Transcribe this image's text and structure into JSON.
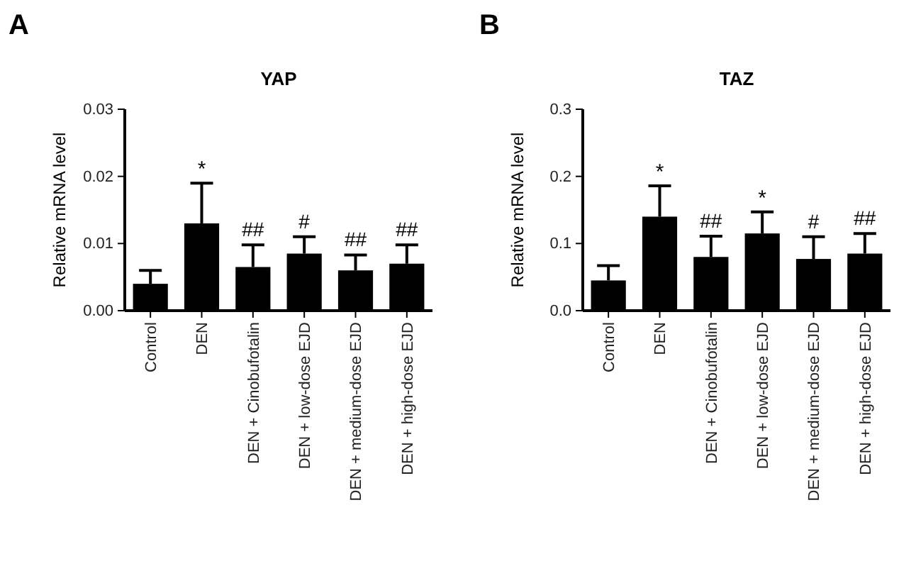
{
  "chart_data": [
    {
      "type": "bar",
      "title": "YAP",
      "ylabel": "Relative mRNA level",
      "categories": [
        "Control",
        "DEN",
        "DEN + Cinobufotalin",
        "DEN + low-dose EJD",
        "DEN + medium-dose EJD",
        "DEN + high-dose EJD"
      ],
      "values": [
        0.004,
        0.013,
        0.0065,
        0.0085,
        0.006,
        0.007
      ],
      "color": "#000000",
      "errors": [
        [
          0.004,
          0.006
        ],
        [
          0.013,
          0.019
        ],
        [
          0.0065,
          0.0098
        ],
        [
          0.0085,
          0.011
        ],
        [
          0.006,
          0.0083
        ],
        [
          0.007,
          0.0098
        ]
      ],
      "ylim": [
        0,
        0.03
      ],
      "yticks": [
        {
          "value": 0,
          "label": "0.00"
        },
        {
          "value": 0.01,
          "label": "0.01"
        },
        {
          "value": 0.02,
          "label": "0.02"
        },
        {
          "value": 0.03,
          "label": "0.03"
        }
      ],
      "annotations": [
        "A",
        {
          "text": "*",
          "x": "DEN",
          "y": 0.019
        },
        {
          "text": "##",
          "x": "DEN + Cinobufotalin",
          "y": 0.0098
        },
        {
          "text": "#",
          "x": "DEN + low-dose EJD",
          "y": 0.011
        },
        {
          "text": "##",
          "x": "DEN + medium-dose EJD",
          "y": 0.0083
        },
        {
          "text": "##",
          "x": "DEN + high-dose EJD",
          "y": 0.0098
        }
      ]
    },
    {
      "type": "bar",
      "title": "TAZ",
      "ylabel": "Relative mRNA level",
      "categories": [
        "Control",
        "DEN",
        "DEN + Cinobufotalin",
        "DEN + low-dose EJD",
        "DEN + medium-dose EJD",
        "DEN + high-dose EJD"
      ],
      "values": [
        0.045,
        0.14,
        0.08,
        0.115,
        0.077,
        0.085
      ],
      "color": "#000000",
      "errors": [
        [
          0.045,
          0.067
        ],
        [
          0.14,
          0.186
        ],
        [
          0.08,
          0.111
        ],
        [
          0.115,
          0.147
        ],
        [
          0.077,
          0.11
        ],
        [
          0.085,
          0.115
        ]
      ],
      "ylim": [
        0,
        0.3
      ],
      "yticks": [
        {
          "value": 0,
          "label": "0.0"
        },
        {
          "value": 0.1,
          "label": "0.1"
        },
        {
          "value": 0.2,
          "label": "0.2"
        },
        {
          "value": 0.3,
          "label": "0.3"
        }
      ],
      "annotations": [
        "B",
        {
          "text": "*",
          "x": "DEN",
          "y": 0.186
        },
        {
          "text": "##",
          "x": "DEN + Cinobufotalin",
          "y": 0.111
        },
        {
          "text": "*",
          "x": "DEN + low-dose EJD",
          "y": 0.147
        },
        {
          "text": "#",
          "x": "DEN + medium-dose EJD",
          "y": 0.11
        },
        {
          "text": "##",
          "x": "DEN + high-dose EJD",
          "y": 0.115
        }
      ]
    }
  ]
}
